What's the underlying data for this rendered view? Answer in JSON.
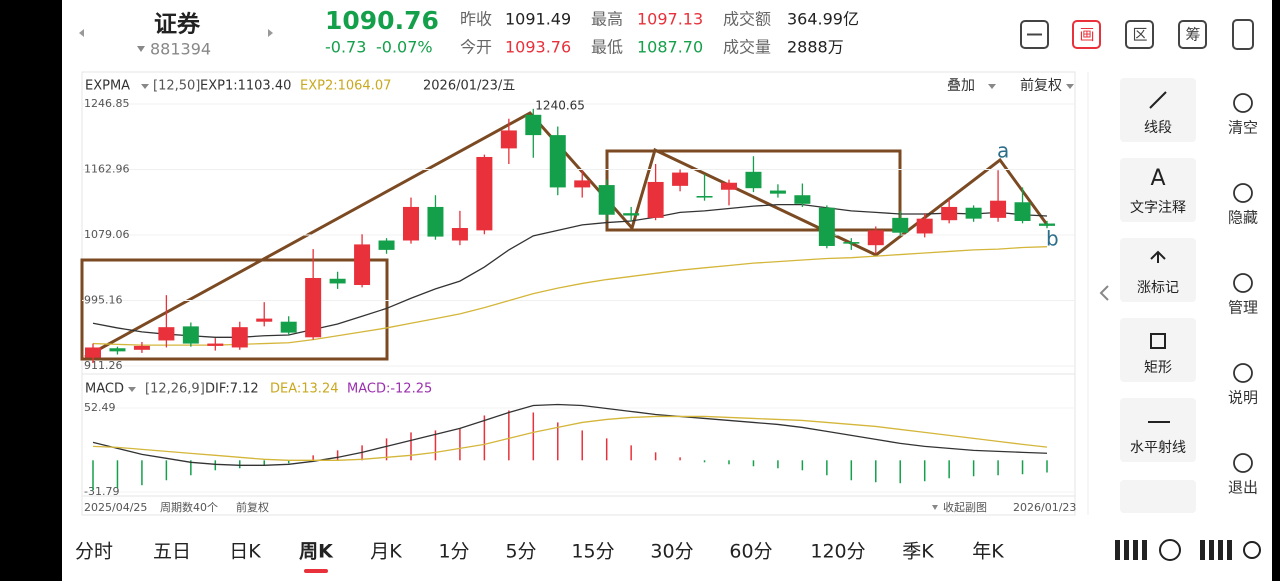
{
  "header": {
    "name": "证券",
    "code": "881394",
    "price": "1090.76",
    "change": "-0.73",
    "change_pct": "-0.07%",
    "stats": [
      [
        "昨收",
        "1091.49"
      ],
      [
        "最高",
        "1097.13"
      ],
      [
        "成交额",
        "364.99亿"
      ],
      [
        "今开",
        "1093.76"
      ],
      [
        "最低",
        "1087.70"
      ],
      [
        "成交量",
        "2888万"
      ]
    ]
  },
  "toolbar": [
    "画",
    "区",
    "筹"
  ],
  "chart_data": [
    {
      "type": "candlestick",
      "indicator": "EXPMA",
      "params": "[12,50]",
      "legend": [
        "EXP1:1103.40",
        "EXP2:1064.07"
      ],
      "date": "2026/01/23/五",
      "overlay": "叠加",
      "adjust": "前复权",
      "up_color": "#e8313a",
      "down_color": "#14a04a",
      "open": [
        922,
        934,
        932,
        944,
        962,
        937,
        935,
        968,
        968,
        948,
        1023,
        1015,
        1072,
        1072,
        1115,
        1072,
        1085,
        1190,
        1233,
        1207,
        1140,
        1143,
        1107,
        1101,
        1142,
        1129,
        1137,
        1160,
        1136,
        1130,
        1114,
        1070,
        1066,
        1101,
        1081,
        1098,
        1114,
        1101,
        1121,
        1093.76
      ],
      "high": [
        940,
        936,
        942,
        1002,
        967,
        947,
        968,
        993,
        975,
        1061,
        1032,
        1080,
        1075,
        1127,
        1130,
        1110,
        1182,
        1228,
        1240.65,
        1218,
        1162,
        1150,
        1115,
        1170,
        1163,
        1157,
        1150,
        1180,
        1144,
        1145,
        1117,
        1075,
        1090,
        1110,
        1107,
        1125,
        1117,
        1162,
        1140,
        1097.13
      ],
      "low": [
        915,
        926,
        928,
        935,
        936,
        931,
        932,
        962,
        951,
        945,
        1010,
        1012,
        1055,
        1068,
        1073,
        1066,
        1080,
        1170,
        1178,
        1130,
        1127,
        1098,
        1097,
        1098,
        1135,
        1123,
        1117,
        1134,
        1127,
        1115,
        1062,
        1060,
        1055,
        1078,
        1076,
        1094,
        1096,
        1096,
        1094,
        1087.7
      ],
      "close": [
        935,
        930,
        937,
        961,
        940,
        940,
        961,
        972,
        954,
        1024,
        1017,
        1067,
        1060,
        1115,
        1077,
        1088,
        1179,
        1213,
        1207,
        1140,
        1149,
        1105,
        1104,
        1147,
        1159,
        1127,
        1146,
        1139,
        1132,
        1119,
        1065,
        1068,
        1085,
        1082,
        1100,
        1115,
        1100,
        1123,
        1097,
        1090.76
      ],
      "series": [
        {
          "name": "EXP1",
          "color": "#333333",
          "values": [
            966,
            960,
            955,
            952,
            950,
            948,
            948,
            950,
            951,
            958,
            965,
            975,
            985,
            998,
            1010,
            1020,
            1038,
            1060,
            1078,
            1085,
            1092,
            1095,
            1097,
            1102,
            1108,
            1110,
            1113,
            1116,
            1118,
            1118,
            1114,
            1110,
            1108,
            1106,
            1106,
            1107,
            1106,
            1108,
            1105,
            1103.4
          ]
        },
        {
          "name": "EXP2",
          "color": "#d4b63a",
          "values": [
            940,
            939,
            938,
            938,
            938,
            938,
            939,
            940,
            941,
            945,
            950,
            955,
            960,
            966,
            972,
            978,
            986,
            995,
            1004,
            1011,
            1017,
            1022,
            1026,
            1030,
            1034,
            1037,
            1040,
            1043,
            1045,
            1047,
            1049,
            1050,
            1052,
            1054,
            1056,
            1058,
            1060,
            1061,
            1063,
            1064.07
          ]
        }
      ],
      "ylim": [
        911.26,
        1246.85
      ],
      "yticks": [
        1246.85,
        1162.96,
        1079.06,
        995.16,
        911.26
      ],
      "grid": true,
      "annotations": [
        "a",
        "b"
      ]
    },
    {
      "type": "macd",
      "indicator": "MACD",
      "params": "[12,26,9]",
      "legend": [
        "DIF:7.12",
        "DEA:13.24",
        "MACD:-12.25"
      ],
      "up_color": "#e8313a",
      "down_color": "#14a04a",
      "series": [
        {
          "name": "DIF",
          "color": "#333333",
          "values": [
            18,
            12,
            6,
            2,
            -2,
            -4,
            -5,
            -5,
            -4,
            -1,
            3,
            8,
            14,
            20,
            26,
            32,
            40,
            48,
            55,
            56,
            55,
            52,
            49,
            46,
            44,
            42,
            40,
            38,
            36,
            33,
            29,
            25,
            21,
            17,
            14,
            12,
            10,
            9,
            8,
            7.12
          ]
        },
        {
          "name": "DEA",
          "color": "#d4b63a",
          "values": [
            14,
            13,
            11,
            9,
            7,
            5,
            3,
            1,
            0,
            0,
            0,
            1,
            3,
            5,
            8,
            12,
            16,
            22,
            28,
            33,
            38,
            41,
            43,
            44,
            44,
            44,
            43,
            42,
            41,
            40,
            38,
            36,
            34,
            31,
            28,
            25,
            22,
            19,
            16,
            13.24
          ]
        }
      ],
      "values": [
        -30,
        -28,
        -25,
        -20,
        -15,
        -10,
        -8,
        -5,
        -3,
        5,
        10,
        15,
        22,
        28,
        30,
        32,
        45,
        50,
        48,
        38,
        30,
        22,
        15,
        8,
        3,
        -2,
        -4,
        -6,
        -8,
        -10,
        -15,
        -20,
        -22,
        -23,
        -21,
        -18,
        -16,
        -15,
        -14,
        -12.25
      ],
      "ylim": [
        -31.79,
        52.49
      ],
      "yticks": [
        52.49,
        -31.79
      ]
    }
  ],
  "footer": {
    "start": "2025/04/25",
    "count": "周期数40个",
    "adjust": "前复权",
    "collapse": "收起副图",
    "end": "2026/01/23"
  },
  "tools": [
    {
      "label": "线段"
    },
    {
      "icon": "A",
      "label": "文字注释"
    },
    {
      "label": "涨标记"
    },
    {
      "label": "矩形"
    },
    {
      "label": "水平射线"
    }
  ],
  "side": [
    "清空",
    "隐藏",
    "管理",
    "说明",
    "退出"
  ],
  "tabs": [
    "分时",
    "五日",
    "日K",
    "周K",
    "月K",
    "1分",
    "5分",
    "15分",
    "30分",
    "60分",
    "120分",
    "季K",
    "年K"
  ],
  "active_tab": 3
}
